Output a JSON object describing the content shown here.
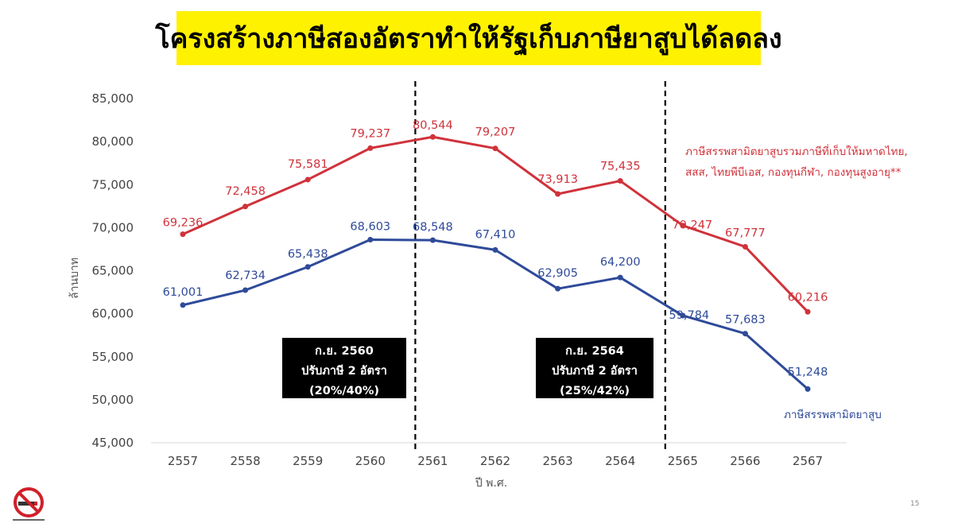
{
  "title": "โครงสร้างภาษีสองอัตราทำให้รัฐเก็บภาษียาสูบได้ลดลง",
  "page_number": "15",
  "colors": {
    "title_bg": "#fff200",
    "red_series": "#d0323a",
    "blue_series": "#2e4a9a"
  },
  "logo_icon": "no-smoking-icon",
  "annotations": [
    {
      "line1": "ก.ย. 2560",
      "line2": "ปรับภาษี 2 อัตรา",
      "line3": "(20%/40%)"
    },
    {
      "line1": "ก.ย. 2564",
      "line2": "ปรับภาษี 2 อัตรา",
      "line3": "(25%/42%)"
    }
  ],
  "notes": {
    "red_line1": "ภาษีสรรพสามิตยาสูบรวมภาษีที่เก็บให้มหาดไทย,",
    "red_line2": "สสส, ไทยพีบีเอส, กองทุนกีฬา, กองทุนสูงอายุ**",
    "blue": "ภาษีสรรพสามิตยาสูบ"
  },
  "chart_data": {
    "type": "line",
    "categories": [
      "2557",
      "2558",
      "2559",
      "2560",
      "2561",
      "2562",
      "2563",
      "2564",
      "2565",
      "2566",
      "2567"
    ],
    "series": [
      {
        "values": [
          69236,
          72458,
          75581,
          79237,
          80544,
          79207,
          73913,
          75435,
          70247,
          67777,
          60216
        ],
        "labels": [
          "69,236",
          "72,458",
          "75,581",
          "79,237",
          "80,544",
          "79,207",
          "73,913",
          "75,435",
          "70,247",
          "67,777",
          "60,216"
        ]
      },
      {
        "values": [
          61001,
          62734,
          65438,
          68603,
          68548,
          67410,
          62905,
          64200,
          59784,
          57683,
          51248
        ],
        "labels": [
          "61,001",
          "62,734",
          "65,438",
          "68,603",
          "68,548",
          "67,410",
          "62,905",
          "64,200",
          "59,784",
          "57,683",
          "51,248"
        ]
      }
    ],
    "y_ticks": [
      "45,000",
      "50,000",
      "55,000",
      "60,000",
      "65,000",
      "70,000",
      "75,000",
      "80,000",
      "85,000"
    ],
    "ylim": [
      45000,
      85000
    ],
    "ylabel": "ล้านบาท",
    "xlabel": "ปี พ.ศ.",
    "reference_lines_after": [
      "2560",
      "2564"
    ],
    "grid": false
  }
}
